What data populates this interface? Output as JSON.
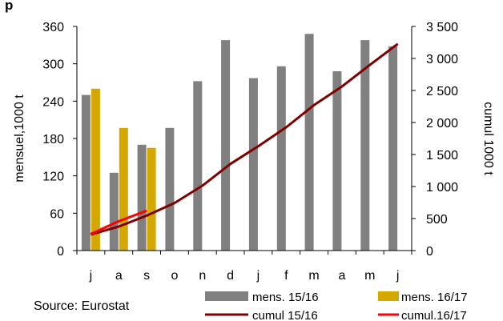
{
  "header_fragment": "p",
  "source": "Source: Eurostat",
  "chart_data": {
    "type": "bar",
    "categories": [
      "j",
      "a",
      "s",
      "o",
      "n",
      "d",
      "j",
      "f",
      "m",
      "a",
      "m",
      "j"
    ],
    "ylabel_left": "mensuel,1000 t",
    "ylabel_right": "cumul 1000 t",
    "ylim_left": [
      0,
      360
    ],
    "yticks_left": [
      {
        "value": 0,
        "label": "0"
      },
      {
        "value": 60,
        "label": "60"
      },
      {
        "value": 120,
        "label": "120"
      },
      {
        "value": 180,
        "label": "180"
      },
      {
        "value": 240,
        "label": "240"
      },
      {
        "value": 300,
        "label": "300"
      },
      {
        "value": 360,
        "label": "360"
      }
    ],
    "ylim_right": [
      0,
      3500
    ],
    "yticks_right": [
      {
        "value": 0,
        "label": "0"
      },
      {
        "value": 500,
        "label": "500"
      },
      {
        "value": 1000,
        "label": "1 000"
      },
      {
        "value": 1500,
        "label": "1 500"
      },
      {
        "value": 2000,
        "label": "2 000"
      },
      {
        "value": 2500,
        "label": "2 500"
      },
      {
        "value": 3000,
        "label": "3 000"
      },
      {
        "value": 3500,
        "label": "3 500"
      }
    ],
    "bar_series": [
      {
        "name": "mens. 15/16",
        "color": "#808080",
        "values": [
          250,
          125,
          170,
          197,
          272,
          338,
          277,
          296,
          348,
          288,
          338,
          328
        ]
      },
      {
        "name": "mens. 16/17",
        "color": "#d4a800",
        "values": [
          260,
          197,
          165
        ]
      }
    ],
    "line_series": [
      {
        "name": "cumul 15/16",
        "color": "#800000",
        "values": [
          250,
          375,
          545,
          742,
          1014,
          1352,
          1629,
          1925,
          2273,
          2561,
          2899,
          3227
        ]
      },
      {
        "name": "cumul.16/17",
        "color": "#ff0000",
        "values": [
          260,
          457,
          622
        ]
      }
    ],
    "legend_position": "bottom",
    "grid": false
  }
}
